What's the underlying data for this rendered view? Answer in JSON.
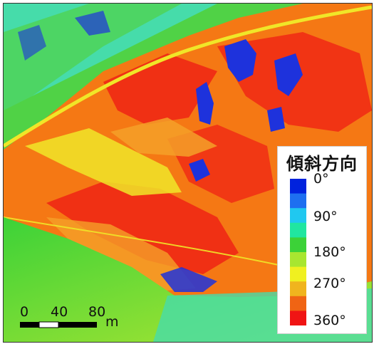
{
  "legend": {
    "title": "傾斜方向",
    "labels": [
      "0°",
      "90°",
      "180°",
      "270°",
      "360°"
    ],
    "color_stops": [
      "#0022dd",
      "#1e6ff0",
      "#20c8f0",
      "#20e6a0",
      "#3cd238",
      "#a8e630",
      "#f0f020",
      "#f0b41e",
      "#f06414",
      "#f01414"
    ]
  },
  "scale": {
    "labels": [
      "0",
      "40",
      "80"
    ],
    "unit": "m"
  },
  "map_colors": {
    "red": "#f02814",
    "orange": "#f57814",
    "light_orange": "#f5a028",
    "yellow": "#f0e628",
    "yellow_green": "#b4e632",
    "green": "#50d246",
    "aqua": "#46dcaa",
    "blue": "#1e32dc"
  }
}
